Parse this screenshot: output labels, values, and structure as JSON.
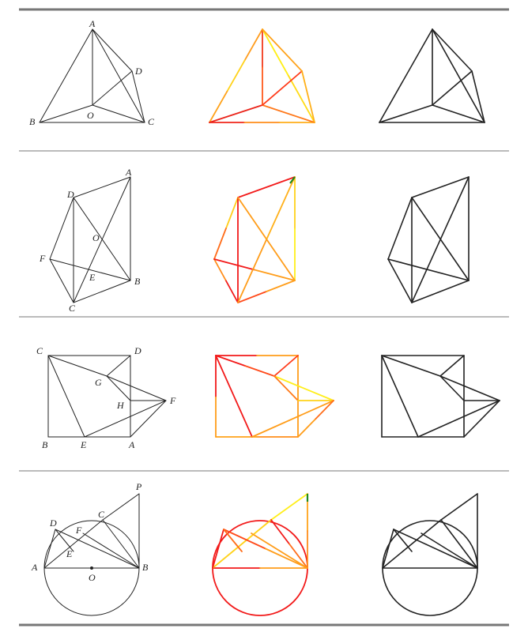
{
  "table": {
    "rows": [
      {
        "id": "tetrahedron",
        "labels": [
          "A",
          "B",
          "C",
          "D",
          "O"
        ],
        "colors": {
          "AB": [
            "#ff9d1f",
            "#ffd21a",
            "#ffa21a"
          ],
          "AO": [
            "#f23a1c",
            "#ff5a1c"
          ],
          "AC": [
            "#ffef17",
            "#ffdb17"
          ],
          "AD": [
            "#ffa21a"
          ],
          "BC": [
            "#f0261a",
            "#ff8d1a",
            "#ffae1a"
          ],
          "BO": [
            "#ea241a"
          ],
          "OC": [
            "#ff781a"
          ],
          "OD": [
            "#ff3b1a"
          ],
          "DC": [
            "#ffb01a"
          ]
        }
      },
      {
        "id": "quadrilateral",
        "labels": [
          "A",
          "B",
          "C",
          "D",
          "E",
          "F",
          "O"
        ],
        "colors": {
          "DA": [
            "#f21a1a"
          ],
          "AB": [
            "#ffd21a",
            "#ffee1a"
          ],
          "DF": [
            "#ffcd1a",
            "#ff6d1a"
          ],
          "FC": [
            "#ff8d1a",
            "#f21a1a"
          ],
          "CB": [
            "#ff4a1a",
            "#ff9d1a"
          ],
          "DC": [
            "#f21a1a"
          ],
          "FB": [
            "#f21a1a",
            "#ff9d1a"
          ],
          "DB": [
            "#ff9d1a"
          ],
          "AC": [
            "#ffb01a",
            "#ff9d1a"
          ],
          "A_TICK": [
            "#1f8a1f"
          ]
        }
      },
      {
        "id": "square",
        "labels": [
          "C",
          "D",
          "B",
          "A",
          "E",
          "F",
          "G",
          "H"
        ],
        "colors": {
          "CD": [
            "#f21a1a",
            "#ff9d1a"
          ],
          "DA": [
            "#ff9d1a"
          ],
          "AB": [
            "#ff8d1a",
            "#ffa21a"
          ],
          "BC": [
            "#ff9d1a",
            "#f21a1a"
          ],
          "CE": [
            "#f21a1a"
          ],
          "CG": [
            "#f21a1a",
            "#ff4a1a"
          ],
          "GF": [
            "#ffee1a"
          ],
          "GD": [
            "#ff3b1a"
          ],
          "GH": [
            "#ff7a1a"
          ],
          "HF": [
            "#ffd21a"
          ],
          "EF": [
            "#ff9d1a"
          ],
          "AF": [
            "#ff9d1a",
            "#ff6d1a"
          ]
        }
      },
      {
        "id": "circle",
        "labels": [
          "P",
          "C",
          "D",
          "F",
          "E",
          "A",
          "O",
          "B"
        ],
        "colors": {
          "circle": "#f21a1a",
          "AB": [
            "#f21a1a",
            "#ff9d1a"
          ],
          "AC": [
            "#ffd21a"
          ],
          "CP": [
            "#ffee1a"
          ],
          "PB": [
            "#ffa21a",
            "#ff8d1a"
          ],
          "DB": [
            "#ff4a1a",
            "#ff9d1a"
          ],
          "CB": [
            "#f21a1a",
            "#ff6d1a"
          ],
          "AD": [
            "#f21a1a"
          ],
          "DE": [
            "#ff6d1a"
          ],
          "FB": [
            "#ff9d1a"
          ],
          "P_TICK": [
            "#1f8a1f"
          ]
        }
      }
    ]
  }
}
